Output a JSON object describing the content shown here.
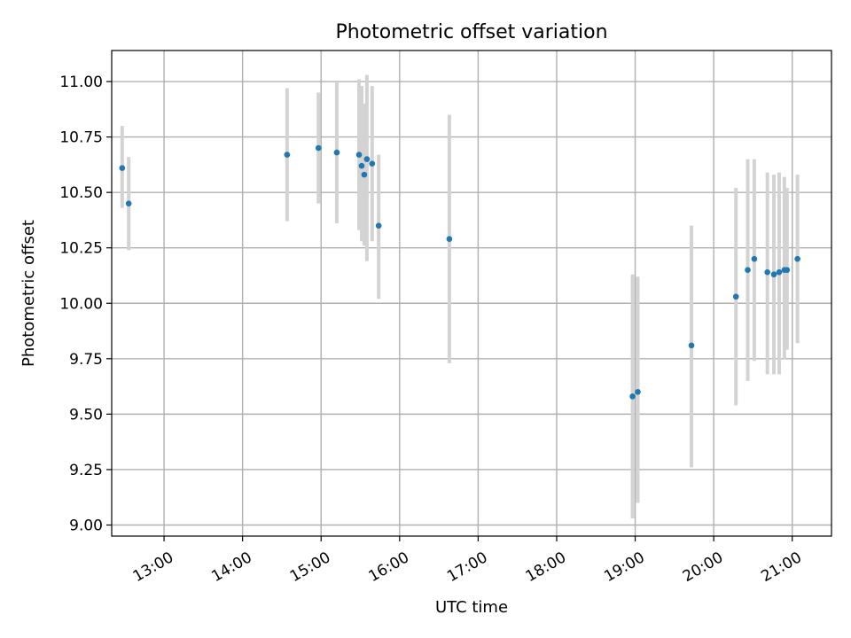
{
  "chart_data": {
    "type": "scatter",
    "title": "Photometric offset variation",
    "xlabel": "UTC time",
    "ylabel": "Photometric offset",
    "grid": true,
    "xlim": [
      "12:20",
      "21:30"
    ],
    "ylim": [
      8.95,
      11.14
    ],
    "x_ticks": [
      "13:00",
      "14:00",
      "15:00",
      "16:00",
      "17:00",
      "18:00",
      "19:00",
      "20:00",
      "21:00"
    ],
    "y_ticks": [
      "9.00",
      "9.25",
      "9.50",
      "9.75",
      "10.00",
      "10.25",
      "10.50",
      "10.75",
      "11.00"
    ],
    "colors": {
      "point": "#1f77b4",
      "errorbar": "#d3d3d3",
      "grid": "#b0b0b0"
    },
    "points": [
      {
        "x": "12:28",
        "y": 10.61,
        "yerr_low": 10.43,
        "yerr_high": 10.8
      },
      {
        "x": "12:33",
        "y": 10.45,
        "yerr_low": 10.24,
        "yerr_high": 10.66
      },
      {
        "x": "14:34",
        "y": 10.67,
        "yerr_low": 10.37,
        "yerr_high": 10.97
      },
      {
        "x": "14:58",
        "y": 10.7,
        "yerr_low": 10.45,
        "yerr_high": 10.95
      },
      {
        "x": "15:12",
        "y": 10.68,
        "yerr_low": 10.36,
        "yerr_high": 11.0
      },
      {
        "x": "15:29",
        "y": 10.67,
        "yerr_low": 10.33,
        "yerr_high": 11.01
      },
      {
        "x": "15:31",
        "y": 10.62,
        "yerr_low": 10.28,
        "yerr_high": 10.98
      },
      {
        "x": "15:33",
        "y": 10.58,
        "yerr_low": 10.26,
        "yerr_high": 10.9
      },
      {
        "x": "15:35",
        "y": 10.65,
        "yerr_low": 10.19,
        "yerr_high": 11.03
      },
      {
        "x": "15:39",
        "y": 10.63,
        "yerr_low": 10.28,
        "yerr_high": 10.98
      },
      {
        "x": "15:44",
        "y": 10.35,
        "yerr_low": 10.02,
        "yerr_high": 10.67
      },
      {
        "x": "16:38",
        "y": 10.29,
        "yerr_low": 9.73,
        "yerr_high": 10.85
      },
      {
        "x": "18:58",
        "y": 9.58,
        "yerr_low": 9.03,
        "yerr_high": 10.13
      },
      {
        "x": "19:02",
        "y": 9.6,
        "yerr_low": 9.1,
        "yerr_high": 10.12
      },
      {
        "x": "19:43",
        "y": 9.81,
        "yerr_low": 9.26,
        "yerr_high": 10.35
      },
      {
        "x": "20:17",
        "y": 10.03,
        "yerr_low": 9.54,
        "yerr_high": 10.52
      },
      {
        "x": "20:26",
        "y": 10.15,
        "yerr_low": 9.65,
        "yerr_high": 10.65
      },
      {
        "x": "20:31",
        "y": 10.2,
        "yerr_low": 9.74,
        "yerr_high": 10.65
      },
      {
        "x": "20:41",
        "y": 10.14,
        "yerr_low": 9.68,
        "yerr_high": 10.59
      },
      {
        "x": "20:46",
        "y": 10.13,
        "yerr_low": 9.68,
        "yerr_high": 10.58
      },
      {
        "x": "20:50",
        "y": 10.14,
        "yerr_low": 9.68,
        "yerr_high": 10.59
      },
      {
        "x": "20:54",
        "y": 10.15,
        "yerr_low": 9.75,
        "yerr_high": 10.57
      },
      {
        "x": "20:56",
        "y": 10.15,
        "yerr_low": 9.79,
        "yerr_high": 10.52
      },
      {
        "x": "21:04",
        "y": 10.2,
        "yerr_low": 9.82,
        "yerr_high": 10.58
      }
    ]
  }
}
